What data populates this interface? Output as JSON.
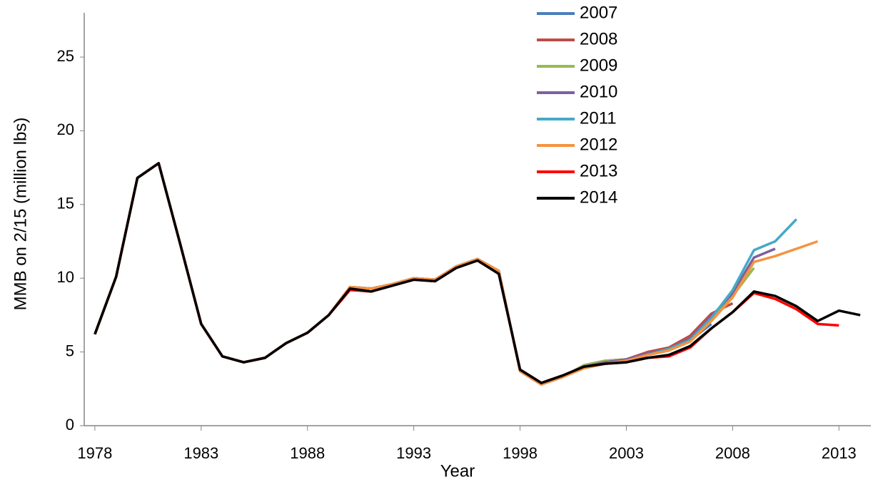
{
  "chart_data": {
    "type": "line",
    "x_label": "Year",
    "y_label": "MMB on 2/15 (million lbs)",
    "x": [
      1978,
      1979,
      1980,
      1981,
      1982,
      1983,
      1984,
      1985,
      1986,
      1987,
      1988,
      1989,
      1990,
      1991,
      1992,
      1993,
      1994,
      1995,
      1996,
      1997,
      1998,
      1999,
      2000,
      2001,
      2002,
      2003,
      2004,
      2005,
      2006,
      2007,
      2008,
      2009,
      2010,
      2011,
      2012,
      2013,
      2014
    ],
    "xlim": [
      1977.5,
      2014.5
    ],
    "xticks": [
      1978,
      1983,
      1988,
      1993,
      1998,
      2003,
      2008,
      2013
    ],
    "ylim": [
      0,
      28
    ],
    "yticks": [
      0,
      5,
      10,
      15,
      20,
      25
    ],
    "grid": false,
    "legend": "top",
    "series": [
      {
        "name": "2007",
        "color": "#4a7ebb",
        "values": [
          6.2,
          10.1,
          16.8,
          17.8,
          12.4,
          6.9,
          4.7,
          4.3,
          4.6,
          5.6,
          6.3,
          7.5,
          9.4,
          9.3,
          9.6,
          10.0,
          9.9,
          10.8,
          11.3,
          10.5,
          3.7,
          2.8,
          3.3,
          4.0,
          4.3,
          4.4,
          4.8,
          5.1,
          5.8,
          6.9,
          null,
          null,
          null,
          null,
          null,
          null,
          null
        ]
      },
      {
        "name": "2008",
        "color": "#be4b48",
        "values": [
          6.2,
          10.1,
          16.8,
          17.8,
          12.4,
          6.9,
          4.7,
          4.3,
          4.6,
          5.6,
          6.3,
          7.5,
          9.4,
          9.3,
          9.6,
          10.0,
          9.9,
          10.8,
          11.3,
          10.5,
          3.7,
          2.8,
          3.3,
          4.1,
          4.4,
          4.5,
          5.0,
          5.3,
          6.1,
          7.6,
          8.3,
          null,
          null,
          null,
          null,
          null,
          null
        ]
      },
      {
        "name": "2009",
        "color": "#98b954",
        "values": [
          6.2,
          10.1,
          16.8,
          17.8,
          12.4,
          6.9,
          4.7,
          4.3,
          4.6,
          5.6,
          6.3,
          7.5,
          9.4,
          9.3,
          9.6,
          10.0,
          9.9,
          10.8,
          11.3,
          10.5,
          3.7,
          2.8,
          3.3,
          4.1,
          4.4,
          4.5,
          4.9,
          5.2,
          5.9,
          7.4,
          8.8,
          10.7,
          null,
          null,
          null,
          null,
          null
        ]
      },
      {
        "name": "2010",
        "color": "#7d60a0",
        "values": [
          6.2,
          10.1,
          16.8,
          17.8,
          12.4,
          6.9,
          4.7,
          4.3,
          4.6,
          5.6,
          6.3,
          7.5,
          9.4,
          9.3,
          9.6,
          10.0,
          9.9,
          10.8,
          11.3,
          10.5,
          3.7,
          2.8,
          3.3,
          4.0,
          4.3,
          4.5,
          4.9,
          5.2,
          5.9,
          7.4,
          9.0,
          11.4,
          12.0,
          null,
          null,
          null,
          null
        ]
      },
      {
        "name": "2011",
        "color": "#46aac5",
        "values": [
          6.2,
          10.1,
          16.8,
          17.8,
          12.4,
          6.9,
          4.7,
          4.3,
          4.6,
          5.6,
          6.3,
          7.5,
          9.4,
          9.3,
          9.6,
          10.0,
          9.9,
          10.8,
          11.3,
          10.5,
          3.7,
          2.8,
          3.3,
          3.9,
          4.2,
          4.4,
          4.8,
          5.2,
          5.8,
          7.3,
          9.2,
          11.9,
          12.5,
          14.0,
          null,
          null,
          null
        ]
      },
      {
        "name": "2012",
        "color": "#f69240",
        "values": [
          6.2,
          10.1,
          16.8,
          17.8,
          12.4,
          6.9,
          4.7,
          4.3,
          4.6,
          5.6,
          6.3,
          7.5,
          9.4,
          9.3,
          9.6,
          10.0,
          9.9,
          10.8,
          11.3,
          10.5,
          3.7,
          2.8,
          3.3,
          3.9,
          4.2,
          4.4,
          4.8,
          5.1,
          5.7,
          7.1,
          8.7,
          11.1,
          11.5,
          12.0,
          12.5,
          null,
          null
        ]
      },
      {
        "name": "2013",
        "color": "#ff0000",
        "values": [
          6.2,
          10.1,
          16.8,
          17.8,
          12.4,
          6.9,
          4.7,
          4.3,
          4.6,
          5.6,
          6.3,
          7.5,
          9.2,
          9.1,
          9.5,
          9.9,
          9.8,
          10.7,
          11.2,
          10.3,
          3.8,
          2.9,
          3.4,
          4.0,
          4.2,
          4.3,
          4.6,
          4.7,
          5.3,
          6.6,
          7.7,
          9.0,
          8.6,
          7.9,
          6.9,
          6.8,
          null
        ]
      },
      {
        "name": "2014",
        "color": "#000000",
        "values": [
          6.2,
          10.1,
          16.8,
          17.8,
          12.4,
          6.9,
          4.7,
          4.3,
          4.6,
          5.6,
          6.3,
          7.5,
          9.3,
          9.1,
          9.5,
          9.9,
          9.8,
          10.7,
          11.2,
          10.3,
          3.8,
          2.9,
          3.4,
          4.0,
          4.2,
          4.3,
          4.6,
          4.8,
          5.4,
          6.6,
          7.7,
          9.1,
          8.8,
          8.1,
          7.1,
          7.8,
          7.5
        ]
      }
    ]
  }
}
